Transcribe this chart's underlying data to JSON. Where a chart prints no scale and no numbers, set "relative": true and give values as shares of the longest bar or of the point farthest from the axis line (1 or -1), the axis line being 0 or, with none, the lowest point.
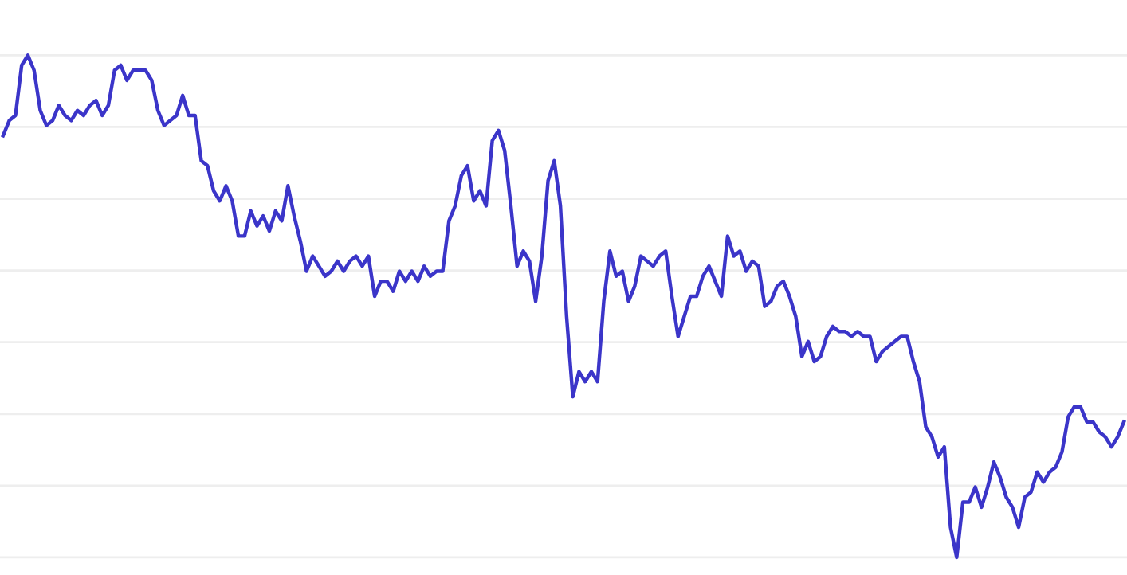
{
  "chart_data": {
    "type": "line",
    "relative": true,
    "grid": "y",
    "color": "#3b35c9",
    "marker": "none",
    "line_style": "solid",
    "categories": [
      null,
      null,
      null,
      null,
      null,
      null,
      null,
      null,
      null,
      null,
      null,
      null,
      null,
      null,
      null,
      null,
      null,
      null,
      null,
      null,
      null,
      null,
      null,
      null,
      null,
      null,
      null,
      null,
      null,
      null,
      null,
      null,
      null,
      null,
      null,
      null,
      null,
      null,
      null,
      null,
      null,
      null,
      null,
      null,
      null,
      null,
      null,
      null,
      null,
      null,
      null,
      null,
      null,
      null,
      null,
      null,
      null,
      null,
      null,
      null,
      null,
      null,
      null,
      null,
      null,
      null,
      null,
      null,
      null,
      null,
      null,
      null,
      null,
      null,
      null,
      null,
      null,
      null,
      null,
      null,
      null,
      null,
      null,
      null,
      null,
      null,
      null,
      null,
      null,
      null,
      null,
      null,
      null,
      null,
      null,
      null,
      null,
      null,
      null,
      null,
      null,
      null,
      null,
      null,
      null,
      null,
      null,
      null,
      null,
      null,
      null,
      null,
      null,
      null,
      null,
      null,
      null,
      null,
      null,
      null,
      null,
      null,
      null,
      null,
      null,
      null,
      null,
      null,
      null,
      null,
      null,
      null,
      null,
      null,
      null,
      null,
      null,
      null,
      null,
      null,
      null,
      null,
      null,
      null,
      null,
      null,
      null,
      null,
      null,
      null,
      null,
      null,
      null,
      null,
      null,
      null,
      null,
      null,
      null,
      null,
      null,
      null,
      null,
      null,
      null,
      null,
      null,
      null,
      null,
      null,
      null,
      null,
      null,
      null,
      null,
      null,
      null,
      null,
      null,
      null,
      null,
      null
    ],
    "values": [
      0.84,
      0.87,
      0.88,
      0.98,
      1,
      0.97,
      0.89,
      0.86,
      0.87,
      0.9,
      0.88,
      0.87,
      0.89,
      0.88,
      0.9,
      0.91,
      0.88,
      0.9,
      0.97,
      0.98,
      0.95,
      0.97,
      0.97,
      0.97,
      0.95,
      0.89,
      0.86,
      0.87,
      0.88,
      0.92,
      0.88,
      0.88,
      0.79,
      0.78,
      0.73,
      0.71,
      0.74,
      0.71,
      0.64,
      0.64,
      0.69,
      0.66,
      0.68,
      0.65,
      0.69,
      0.67,
      0.74,
      0.68,
      0.63,
      0.57,
      0.6,
      0.58,
      0.56,
      0.57,
      0.59,
      0.57,
      0.59,
      0.6,
      0.58,
      0.6,
      0.52,
      0.55,
      0.55,
      0.53,
      0.57,
      0.55,
      0.57,
      0.55,
      0.58,
      0.56,
      0.57,
      0.57,
      0.67,
      0.7,
      0.76,
      0.78,
      0.71,
      0.73,
      0.7,
      0.83,
      0.85,
      0.81,
      0.7,
      0.58,
      0.61,
      0.59,
      0.51,
      0.6,
      0.75,
      0.79,
      0.7,
      0.48,
      0.32,
      0.37,
      0.35,
      0.37,
      0.35,
      0.51,
      0.61,
      0.56,
      0.57,
      0.51,
      0.54,
      0.6,
      0.59,
      0.58,
      0.6,
      0.61,
      0.52,
      0.44,
      0.48,
      0.52,
      0.52,
      0.56,
      0.58,
      0.55,
      0.52,
      0.64,
      0.6,
      0.61,
      0.57,
      0.59,
      0.58,
      0.5,
      0.51,
      0.54,
      0.55,
      0.52,
      0.48,
      0.4,
      0.43,
      0.39,
      0.4,
      0.44,
      0.46,
      0.45,
      0.45,
      0.44,
      0.45,
      0.44,
      0.44,
      0.39,
      0.41,
      0.42,
      0.43,
      0.44,
      0.44,
      0.39,
      0.35,
      0.26,
      0.24,
      0.2,
      0.22,
      0.06,
      0,
      0.11,
      0.11,
      0.14,
      0.1,
      0.14,
      0.19,
      0.16,
      0.12,
      0.1,
      0.06,
      0.12,
      0.13,
      0.17,
      0.15,
      0.17,
      0.18,
      0.21,
      0.28,
      0.3,
      0.3,
      0.27,
      0.27,
      0.25,
      0.24,
      0.22,
      0.24,
      0.27
    ]
  }
}
